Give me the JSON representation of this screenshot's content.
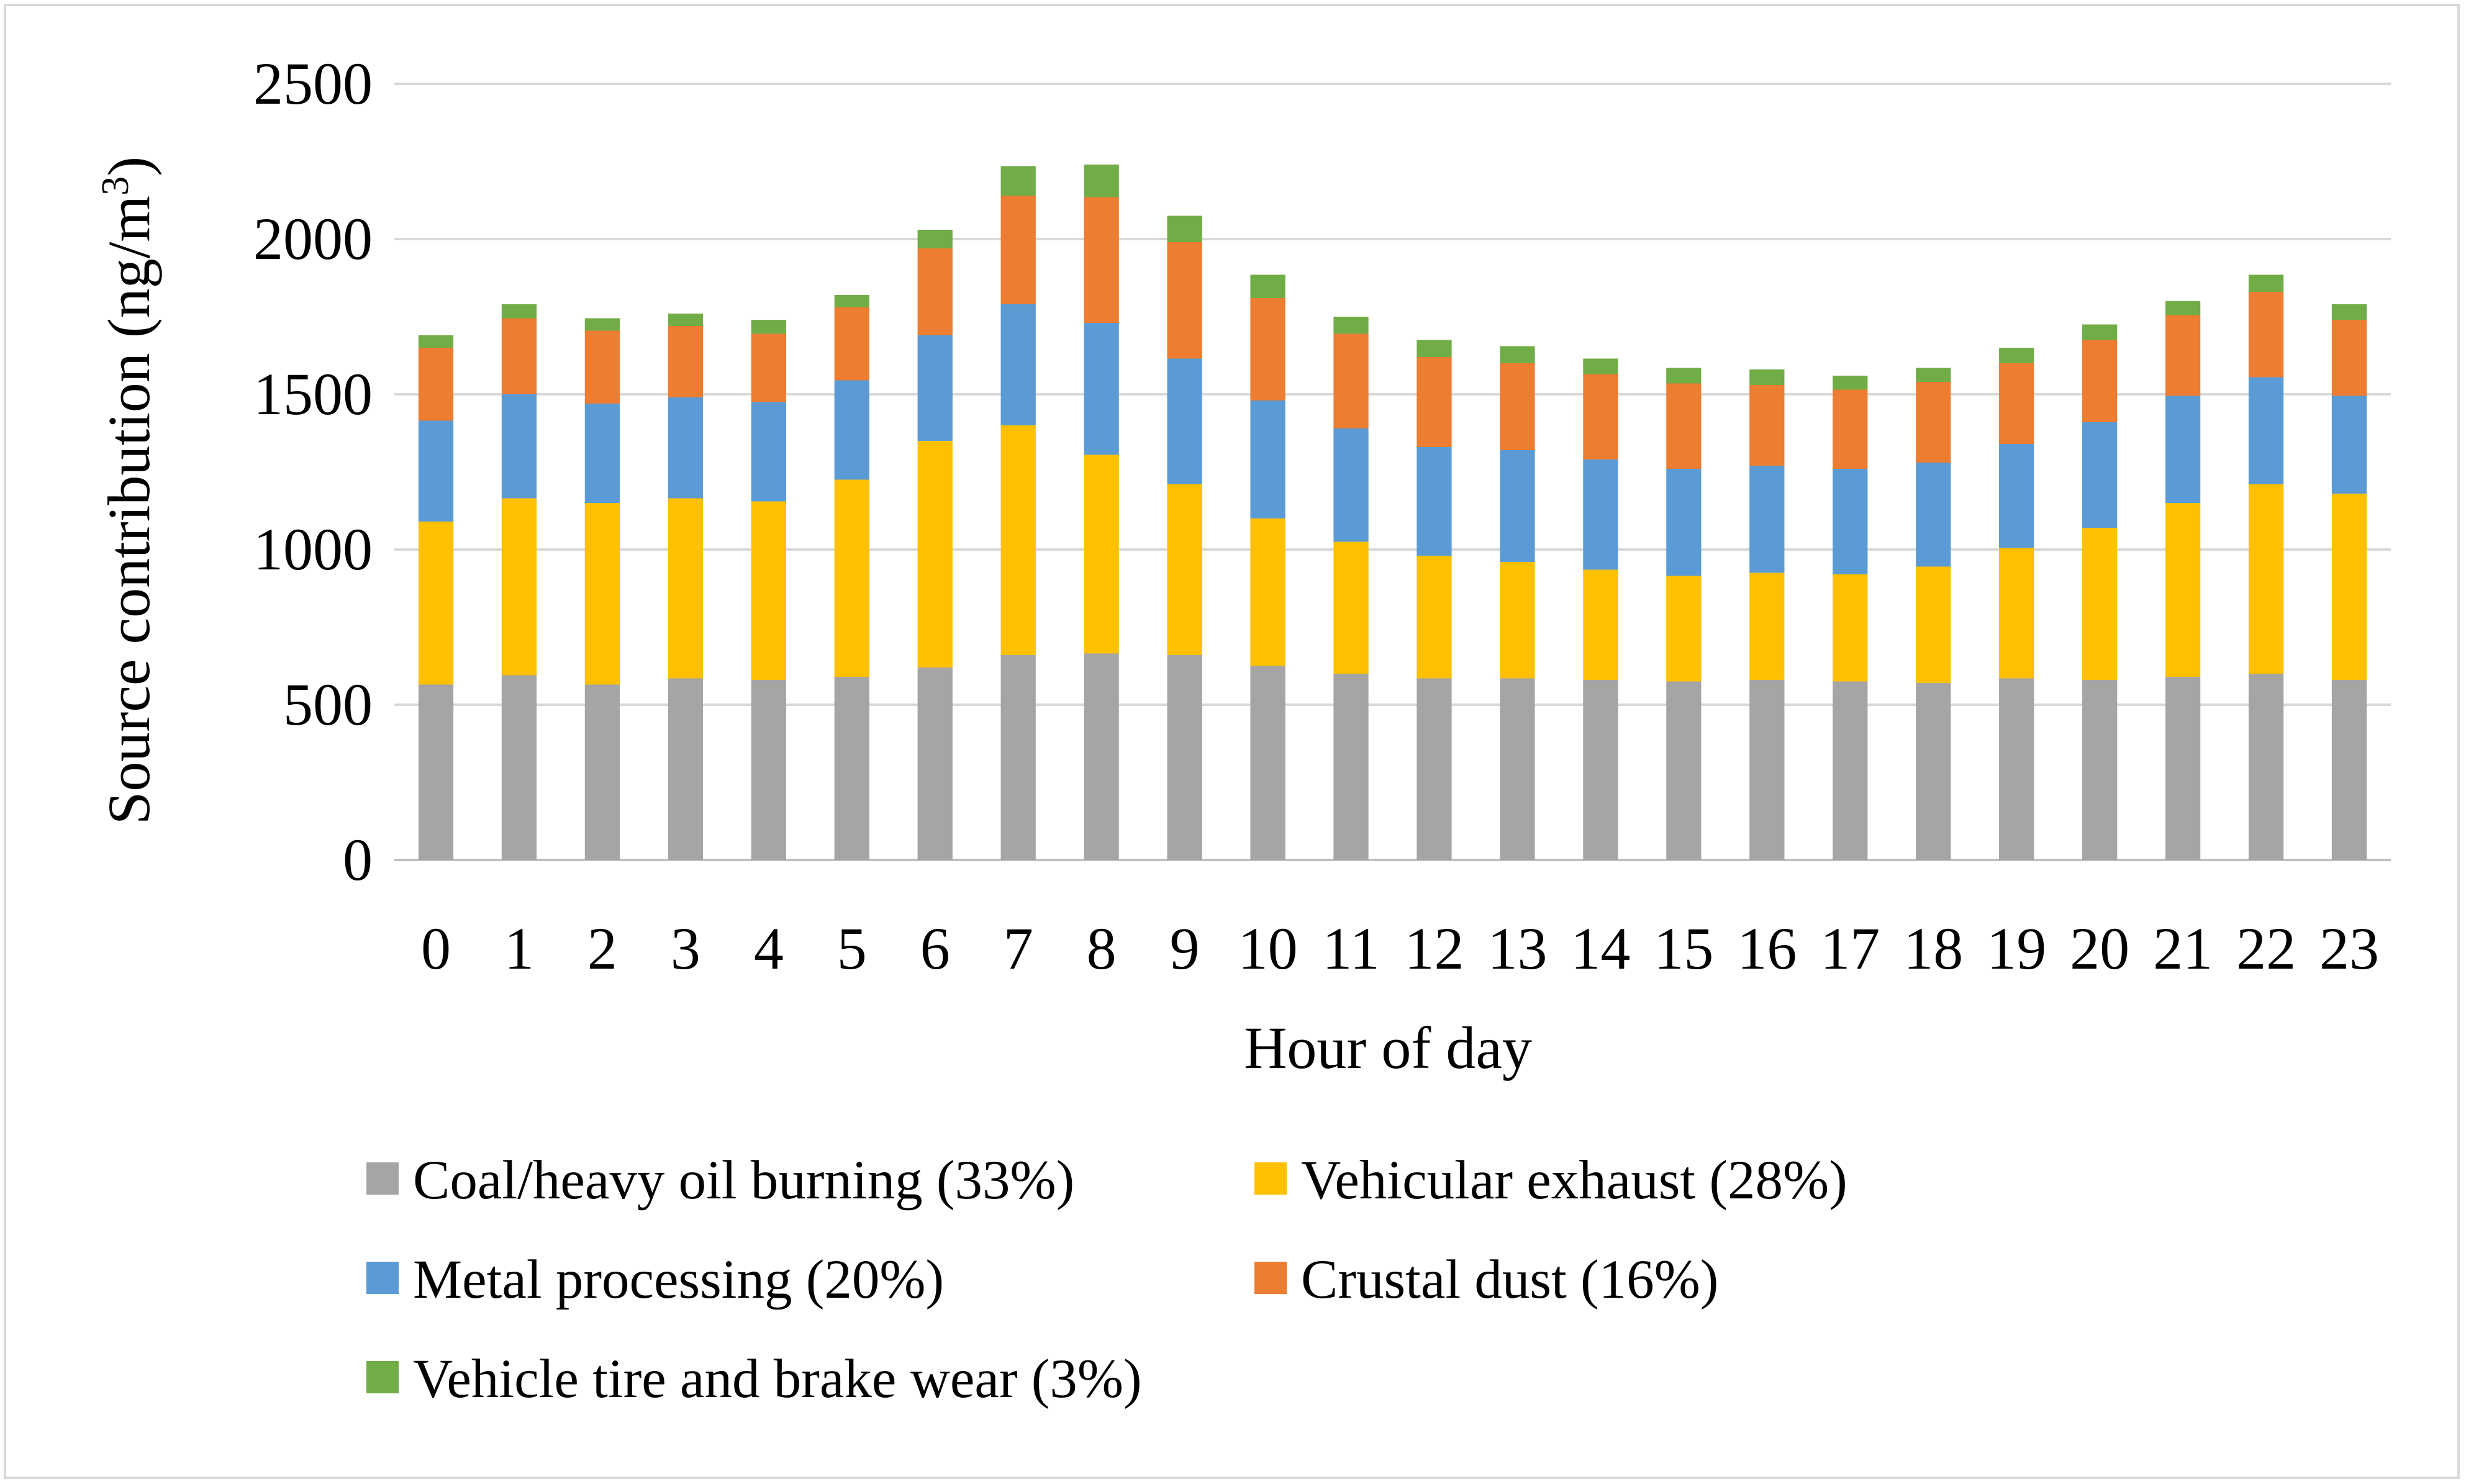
{
  "chart_data": {
    "type": "bar",
    "stacked": true,
    "title": "",
    "xlabel": "Hour of day",
    "ylabel_main": "Source contribution (ng/m",
    "ylabel_sup": "3",
    "ylabel_close": ")",
    "ylim": [
      0,
      2500
    ],
    "yticks": [
      0,
      500,
      1000,
      1500,
      2000,
      2500
    ],
    "grid": true,
    "legend_position": "bottom",
    "categories": [
      "0",
      "1",
      "2",
      "3",
      "4",
      "5",
      "6",
      "7",
      "8",
      "9",
      "10",
      "11",
      "12",
      "13",
      "14",
      "15",
      "16",
      "17",
      "18",
      "19",
      "20",
      "21",
      "22",
      "23"
    ],
    "series": [
      {
        "name": "Coal/heavy oil burning (33%)",
        "color": "#a5a5a5",
        "values": [
          565,
          595,
          565,
          585,
          580,
          590,
          620,
          660,
          665,
          660,
          625,
          600,
          585,
          585,
          580,
          575,
          580,
          575,
          570,
          585,
          580,
          590,
          600,
          580
        ]
      },
      {
        "name": "Vehicular exhaust (28%)",
        "color": "#ffc000",
        "values": [
          525,
          570,
          585,
          580,
          575,
          635,
          730,
          740,
          640,
          550,
          475,
          425,
          395,
          375,
          355,
          340,
          345,
          345,
          375,
          420,
          490,
          560,
          610,
          600
        ]
      },
      {
        "name": "Metal processing (20%)",
        "color": "#5b9bd5",
        "values": [
          325,
          335,
          320,
          325,
          320,
          320,
          340,
          390,
          425,
          405,
          380,
          365,
          350,
          360,
          355,
          345,
          345,
          340,
          335,
          335,
          340,
          345,
          345,
          315
        ]
      },
      {
        "name": "Crustal dust (16%)",
        "color": "#ed7d31",
        "values": [
          235,
          245,
          235,
          230,
          220,
          235,
          280,
          350,
          405,
          375,
          330,
          305,
          290,
          280,
          275,
          275,
          260,
          255,
          260,
          260,
          265,
          260,
          275,
          245
        ]
      },
      {
        "name": "Vehicle tire and brake wear (3%)",
        "color": "#70ad47",
        "values": [
          40,
          45,
          40,
          40,
          45,
          40,
          60,
          95,
          105,
          85,
          75,
          55,
          55,
          55,
          50,
          50,
          50,
          45,
          45,
          50,
          50,
          45,
          55,
          50
        ]
      }
    ]
  }
}
